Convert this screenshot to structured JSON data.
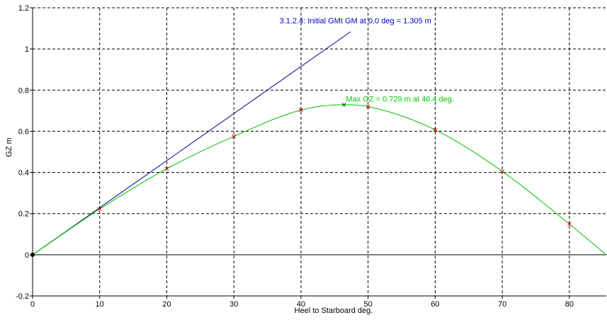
{
  "chart_data": {
    "type": "line",
    "xlabel": "Heel to Starboard   deg.",
    "ylabel": "GZ   m",
    "xlim": [
      0,
      85.5
    ],
    "ylim": [
      -0.2,
      1.2
    ],
    "x_ticks": [
      0,
      10,
      20,
      30,
      40,
      50,
      60,
      70,
      80
    ],
    "y_ticks": [
      -0.2,
      0,
      0.2,
      0.4,
      0.6,
      0.8,
      1,
      1.2
    ],
    "y_tick_labels": [
      "-0.2",
      "0",
      "0.2",
      "0.4",
      "0.6",
      "0.8",
      "1",
      "1.2"
    ],
    "grid": true,
    "series": [
      {
        "color": "#00c000",
        "x": [
          0,
          10,
          20,
          30,
          40,
          46.4,
          50,
          60,
          70,
          80,
          85.5
        ],
        "y": [
          0,
          0.222,
          0.418,
          0.575,
          0.703,
          0.729,
          0.72,
          0.607,
          0.405,
          0.149,
          0
        ]
      },
      {
        "color": "#00008b",
        "x": [
          0,
          47.4
        ],
        "y": [
          0,
          1.084
        ]
      }
    ],
    "annotations": [
      {
        "text": "3.1.2.4: Initial GMt GM at 0.0 deg = 1.305 m",
        "color": "#0000cc",
        "x": 36.8,
        "y": 1.125
      },
      {
        "text": "Max GZ = 0.729 m at 46.4 deg.",
        "color": "#00cc00",
        "x": 46.7,
        "y": 0.745
      }
    ]
  }
}
